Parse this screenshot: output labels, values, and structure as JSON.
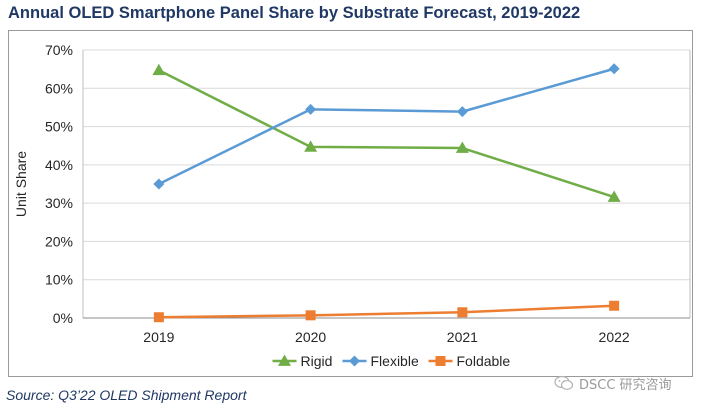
{
  "title": "Annual OLED Smartphone Panel Share by Substrate Forecast, 2019-2022",
  "source": "Source: Q3’22 OLED Shipment Report",
  "watermark": "DSCC 研究咨询",
  "chart_data": {
    "type": "line",
    "title": "Annual OLED Smartphone Panel Share by Substrate Forecast, 2019-2022",
    "xlabel": "",
    "ylabel": "Unit Share",
    "categories": [
      "2019",
      "2020",
      "2021",
      "2022"
    ],
    "ylim": [
      0,
      70
    ],
    "yticks": [
      0,
      10,
      20,
      30,
      40,
      50,
      60,
      70
    ],
    "ytick_labels": [
      "0%",
      "10%",
      "20%",
      "30%",
      "40%",
      "50%",
      "60%",
      "70%"
    ],
    "grid": true,
    "legend_position": "bottom",
    "series": [
      {
        "name": "Rigid",
        "values": [
          64.7,
          44.7,
          44.4,
          31.6
        ],
        "color": "#70ad47",
        "marker": "triangle"
      },
      {
        "name": "Flexible",
        "values": [
          35.0,
          54.5,
          53.9,
          65.1
        ],
        "color": "#5b9bd5",
        "marker": "diamond"
      },
      {
        "name": "Foldable",
        "values": [
          0.2,
          0.7,
          1.5,
          3.2
        ],
        "color": "#ed7d31",
        "marker": "square"
      }
    ]
  }
}
